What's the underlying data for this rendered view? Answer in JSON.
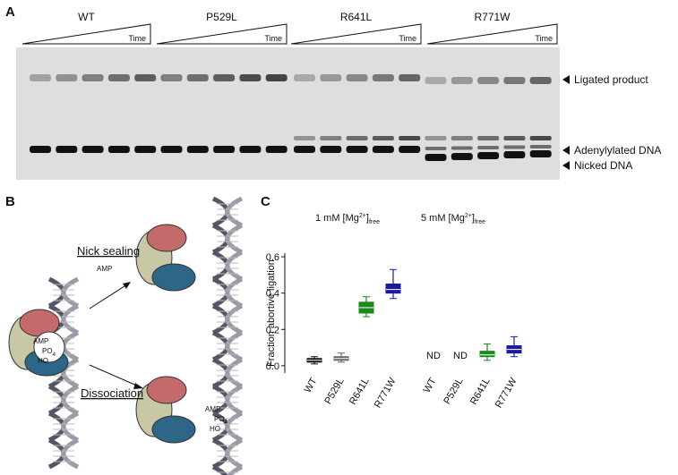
{
  "panels": {
    "a": {
      "letter": "A",
      "groups": [
        "WT",
        "P529L",
        "R641L",
        "R771W"
      ],
      "time_label": "Time",
      "bands": [
        "Ligated product",
        "Adenylylated DNA",
        "Nicked DNA"
      ]
    },
    "b": {
      "letter": "B",
      "nick_sealing": "Nick sealing",
      "dissociation": "Dissociation",
      "amp": "AMP",
      "po": "PO",
      "po_sub": "4",
      "ho": "HO"
    }
  },
  "chart_data": {
    "type": "box",
    "letter": "C",
    "y_label": "Fraction abortive ligation",
    "group_labels": [
      {
        "pre": "1 mM [Mg",
        "sup": "2+",
        "mid": "]",
        "sub": "free"
      },
      {
        "pre": "5 mM [Mg",
        "sup": "2+",
        "mid": "]",
        "sub": "free"
      }
    ],
    "categories": [
      "WT",
      "P529L",
      "R641L",
      "R771W",
      "WT",
      "P529L",
      "R641L",
      "R771W"
    ],
    "colors": [
      "#111111",
      "#666666",
      "#1a8a1a",
      "#1a1aa0",
      "#111111",
      "#666666",
      "#1a8a1a",
      "#1a1aa0"
    ],
    "stats": [
      {
        "min": 0.01,
        "q1": 0.02,
        "median": 0.03,
        "q3": 0.04,
        "max": 0.05
      },
      {
        "min": 0.02,
        "q1": 0.03,
        "median": 0.04,
        "q3": 0.05,
        "max": 0.07
      },
      {
        "min": 0.27,
        "q1": 0.29,
        "median": 0.32,
        "q3": 0.35,
        "max": 0.38
      },
      {
        "min": 0.37,
        "q1": 0.4,
        "median": 0.42,
        "q3": 0.45,
        "max": 0.53
      },
      null,
      null,
      {
        "min": 0.03,
        "q1": 0.05,
        "median": 0.06,
        "q3": 0.08,
        "max": 0.12
      },
      {
        "min": 0.05,
        "q1": 0.07,
        "median": 0.09,
        "q3": 0.11,
        "max": 0.16
      }
    ],
    "value_labels": [
      null,
      null,
      null,
      null,
      "ND",
      "ND",
      null,
      null
    ],
    "ylim": [
      -0.04,
      0.62
    ],
    "yticks": [
      {
        "value": 0,
        "label": "0.0"
      },
      0.2,
      0.4,
      0.6
    ]
  }
}
